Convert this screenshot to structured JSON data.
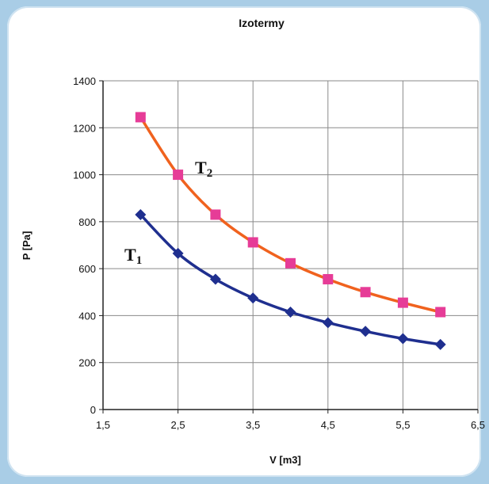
{
  "chart_data": {
    "type": "line",
    "title": "Izotermy",
    "xlabel": "V [m3]",
    "ylabel": "P [Pa]",
    "xlim": [
      1.5,
      6.5
    ],
    "ylim": [
      0,
      1400
    ],
    "x_ticks": [
      1.5,
      2.5,
      3.5,
      4.5,
      5.5,
      6.5
    ],
    "x_tick_labels": [
      "1,5",
      "2,5",
      "3,5",
      "4,5",
      "5,5",
      "6,5"
    ],
    "y_ticks": [
      0,
      200,
      400,
      600,
      800,
      1000,
      1200,
      1400
    ],
    "y_tick_labels": [
      "0",
      "200",
      "400",
      "600",
      "800",
      "1000",
      "1200",
      "1400"
    ],
    "grid": true,
    "x": [
      2,
      2.5,
      3,
      3.5,
      4,
      4.5,
      5,
      5.5,
      6
    ],
    "series": [
      {
        "name": "T1",
        "label_main": "T",
        "label_sub": "1",
        "color": "#1f2f8f",
        "marker": "diamond",
        "marker_color": "#1f2f8f",
        "values": [
          830,
          665,
          555,
          475,
          415,
          370,
          333,
          302,
          277
        ]
      },
      {
        "name": "T2",
        "label_main": "T",
        "label_sub": "2",
        "color": "#f0621e",
        "marker": "square",
        "marker_color": "#e63c97",
        "values": [
          1245,
          1000,
          830,
          712,
          623,
          555,
          500,
          455,
          415
        ]
      }
    ]
  }
}
